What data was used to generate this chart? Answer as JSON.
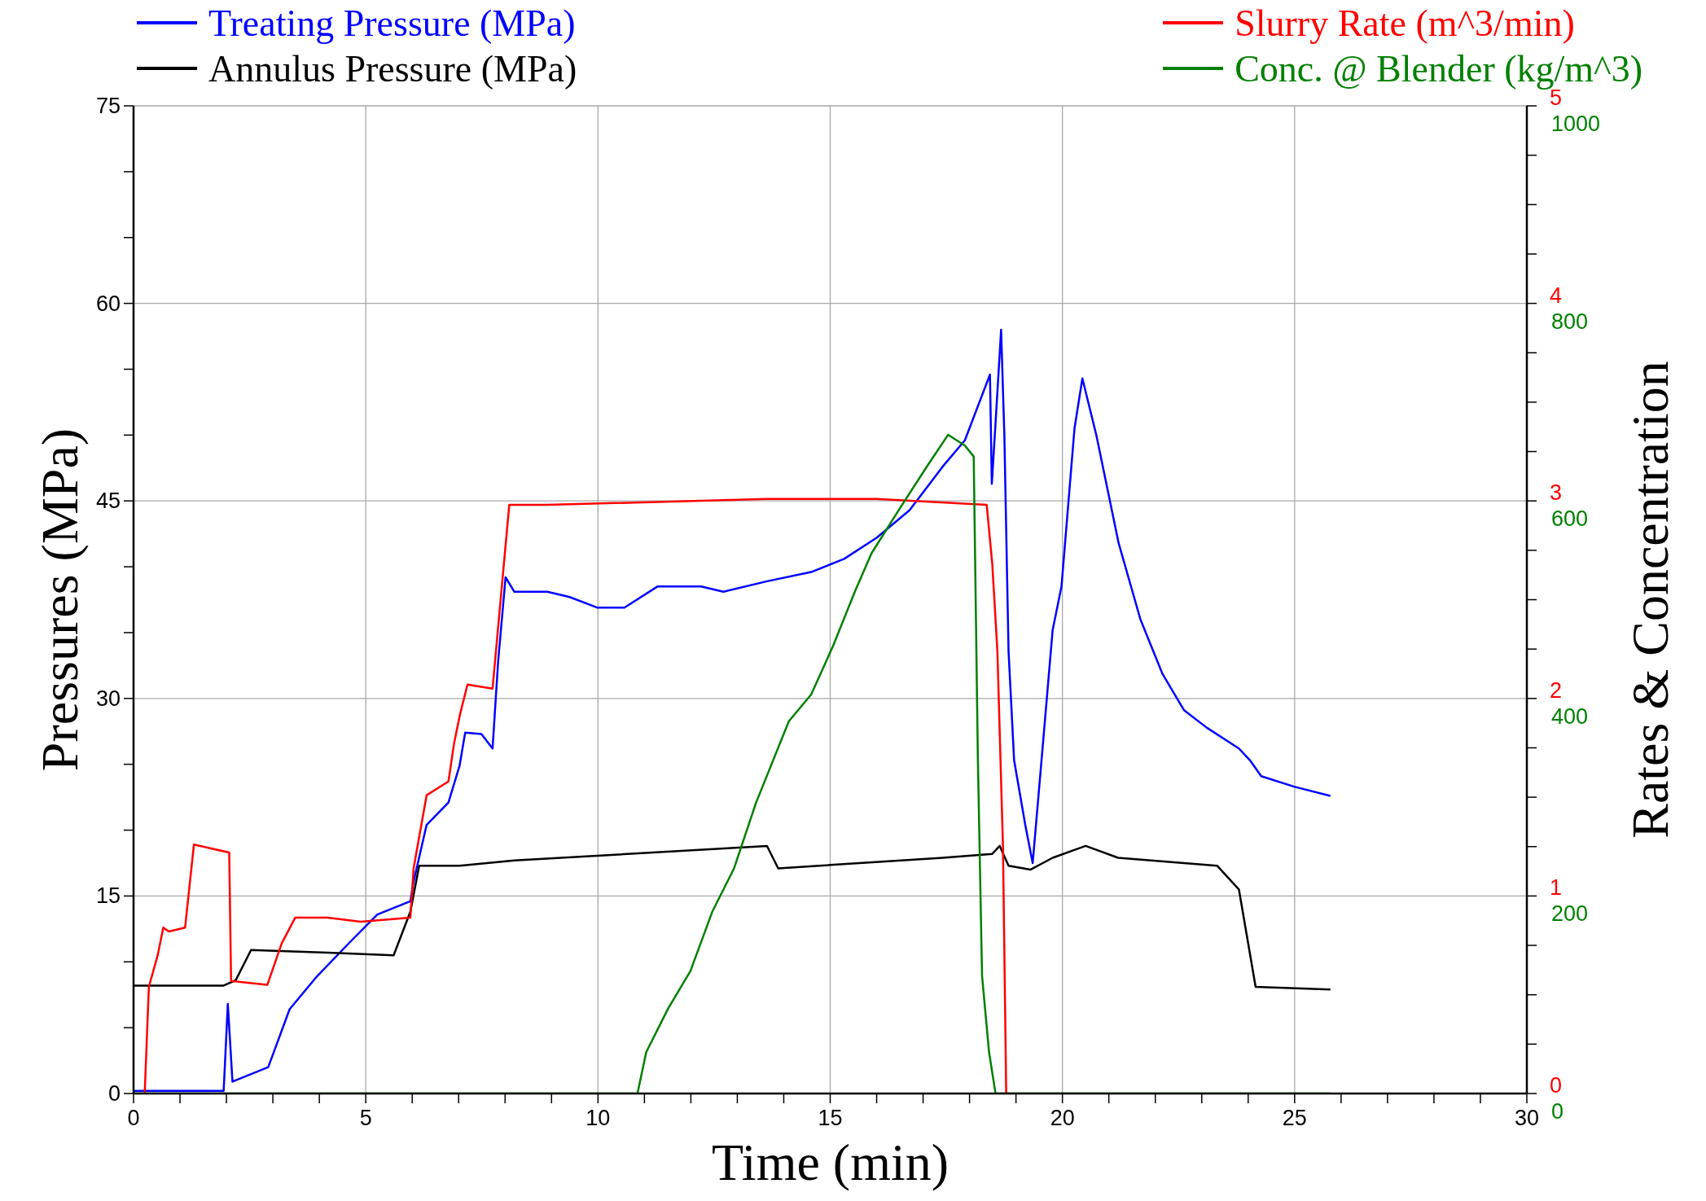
{
  "chart_data": {
    "type": "line",
    "xlabel": "Time (min)",
    "ylabel": "Pressures (MPa)",
    "y2label": "Rates & Concentration",
    "legend": "top",
    "grid": true,
    "marker": "none",
    "line_style": "solid",
    "xlim": [
      0,
      30
    ],
    "xticks": [
      0,
      {
        "value": 1,
        "label": null
      },
      {
        "value": 2,
        "label": null
      },
      {
        "value": 3,
        "label": null
      },
      {
        "value": 4,
        "label": null
      },
      5,
      {
        "value": 6,
        "label": null
      },
      {
        "value": 7,
        "label": null
      },
      {
        "value": 8,
        "label": null
      },
      {
        "value": 9,
        "label": null
      },
      10,
      {
        "value": 11,
        "label": null
      },
      {
        "value": 12,
        "label": null
      },
      {
        "value": 13,
        "label": null
      },
      {
        "value": 14,
        "label": null
      },
      15,
      {
        "value": 16,
        "label": null
      },
      {
        "value": 17,
        "label": null
      },
      {
        "value": 18,
        "label": null
      },
      {
        "value": 19,
        "label": null
      },
      20,
      {
        "value": 21,
        "label": null
      },
      {
        "value": 22,
        "label": null
      },
      {
        "value": 23,
        "label": null
      },
      {
        "value": 24,
        "label": null
      },
      25,
      {
        "value": 26,
        "label": null
      },
      {
        "value": 27,
        "label": null
      },
      {
        "value": 28,
        "label": null
      },
      {
        "value": 29,
        "label": null
      },
      30
    ],
    "ylim": [
      0,
      75
    ],
    "yticks": [
      0,
      {
        "value": 5,
        "label": null
      },
      {
        "value": 10,
        "label": null
      },
      15,
      {
        "value": 20,
        "label": null
      },
      {
        "value": 25,
        "label": null
      },
      30,
      {
        "value": 35,
        "label": null
      },
      {
        "value": 40,
        "label": null
      },
      45,
      {
        "value": 50,
        "label": null
      },
      {
        "value": 55,
        "label": null
      },
      60,
      {
        "value": 65,
        "label": null
      },
      {
        "value": 70,
        "label": null
      },
      75
    ],
    "y2lim": [
      0,
      5
    ],
    "y2ticks": [
      0,
      {
        "value": 0.25,
        "label": null
      },
      {
        "value": 0.5,
        "label": null
      },
      {
        "value": 0.75,
        "label": null
      },
      1,
      {
        "value": 1.25,
        "label": null
      },
      {
        "value": 1.5,
        "label": null
      },
      {
        "value": 1.75,
        "label": null
      },
      2,
      {
        "value": 2.25,
        "label": null
      },
      {
        "value": 2.5,
        "label": null
      },
      {
        "value": 2.75,
        "label": null
      },
      3,
      {
        "value": 3.25,
        "label": null
      },
      {
        "value": 3.5,
        "label": null
      },
      {
        "value": 3.75,
        "label": null
      },
      4,
      {
        "value": 4.25,
        "label": null
      },
      {
        "value": 4.5,
        "label": null
      },
      {
        "value": 4.75,
        "label": null
      },
      5
    ],
    "y3lim": [
      0,
      1000
    ],
    "y3ticks": [
      0,
      200,
      400,
      600,
      800,
      1000
    ],
    "series": [
      {
        "name": "Treating Pressure (MPa)",
        "color": "#0000ff",
        "x": [
          0,
          1.94,
          2.03,
          2.13,
          2.9,
          3.36,
          3.95,
          4.66,
          5.25,
          5.96,
          6.03,
          6.31,
          6.78,
          7.02,
          7.14,
          7.49,
          7.73,
          7.85,
          8.01,
          8.2,
          8.91,
          9.39,
          9.98,
          10.57,
          11.28,
          12.22,
          12.7,
          13.64,
          14.59,
          15.3,
          16.0,
          16.71,
          17.42,
          17.9,
          18.44,
          18.48,
          18.56,
          18.68,
          18.75,
          18.84,
          18.96,
          19.2,
          19.36,
          19.55,
          19.79,
          19.98,
          20.26,
          20.43,
          20.73,
          21.21,
          21.68,
          22.15,
          22.62,
          23.1,
          23.8,
          24.04,
          24.28,
          24.99,
          25.77
        ],
        "values": [
          0.2,
          0.2,
          6.8,
          0.9,
          2.0,
          6.4,
          8.9,
          11.5,
          13.6,
          14.6,
          16.1,
          20.4,
          22.1,
          24.9,
          27.4,
          27.3,
          26.2,
          32.8,
          39.2,
          38.1,
          38.1,
          37.7,
          36.9,
          36.9,
          38.5,
          38.5,
          38.1,
          38.9,
          39.6,
          40.6,
          42.2,
          44.3,
          47.6,
          49.6,
          54.6,
          46.3,
          50.9,
          58.0,
          50.0,
          33.6,
          25.3,
          20.4,
          17.5,
          25.3,
          35.2,
          38.5,
          50.5,
          54.3,
          50.0,
          41.8,
          36.0,
          31.9,
          29.1,
          27.8,
          26.2,
          25.3,
          24.1,
          23.3,
          22.6
        ]
      },
      {
        "name": "Annulus Pressure (MPa)",
        "color": "#000000",
        "x": [
          0,
          1.94,
          2.2,
          2.53,
          4.18,
          5.6,
          5.96,
          6.15,
          7.02,
          8.2,
          13.64,
          13.88,
          17.42,
          18.49,
          18.65,
          18.84,
          19.31,
          19.79,
          20.5,
          21.2,
          23.33,
          23.8,
          24.16,
          25.77
        ],
        "values": [
          8.2,
          8.2,
          8.6,
          10.9,
          10.7,
          10.5,
          13.8,
          17.3,
          17.3,
          17.7,
          18.8,
          17.1,
          17.9,
          18.2,
          18.8,
          17.3,
          17.0,
          17.9,
          18.8,
          17.9,
          17.3,
          15.5,
          8.1,
          7.9
        ]
      },
      {
        "name": "Slurry Rate (m^3/min)",
        "color": "#ff0000",
        "axis": "y2",
        "x": [
          0.24,
          0.33,
          0.52,
          0.64,
          0.76,
          1.11,
          1.3,
          2.06,
          2.1,
          2.88,
          3.19,
          3.48,
          4.18,
          4.89,
          5.96,
          6.03,
          6.31,
          6.78,
          6.9,
          7.02,
          7.19,
          7.73,
          7.9,
          8.09,
          8.91,
          13.64,
          16.0,
          18.37,
          18.49,
          18.6,
          18.72,
          18.79
        ],
        "values": [
          0,
          0.54,
          0.7,
          0.84,
          0.82,
          0.84,
          1.26,
          1.22,
          0.57,
          0.55,
          0.76,
          0.89,
          0.89,
          0.87,
          0.89,
          1.14,
          1.51,
          1.58,
          1.77,
          1.91,
          2.07,
          2.05,
          2.49,
          2.98,
          2.98,
          3.01,
          3.01,
          2.98,
          2.68,
          2.24,
          1.25,
          0
        ]
      },
      {
        "name": "Conc. @ Blender (kg/m^3)",
        "color": "#008000",
        "axis": "y3",
        "x": [
          0,
          10.85,
          11.04,
          11.51,
          11.99,
          12.46,
          12.93,
          13.4,
          14.11,
          14.59,
          15.06,
          15.53,
          15.89,
          16.48,
          17.07,
          17.54,
          17.9,
          18.09,
          18.18,
          18.27,
          18.42,
          18.56,
          25.77
        ],
        "values": [
          0,
          0,
          42,
          86,
          124,
          184,
          228,
          294,
          377,
          404,
          453,
          508,
          547,
          591,
          634,
          667,
          656,
          645,
          338,
          119,
          42,
          0,
          0
        ]
      }
    ]
  }
}
